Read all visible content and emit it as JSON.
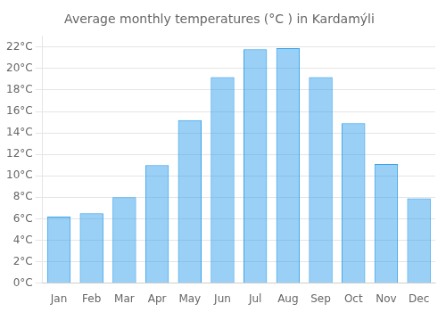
{
  "chart_data": {
    "type": "bar",
    "title": "Average monthly temperatures (°C ) in Kardamýli",
    "categories": [
      "Jan",
      "Feb",
      "Mar",
      "Apr",
      "May",
      "Jun",
      "Jul",
      "Aug",
      "Sep",
      "Oct",
      "Nov",
      "Dec"
    ],
    "values": [
      6.2,
      6.5,
      8.0,
      11.0,
      15.2,
      19.2,
      21.8,
      21.9,
      19.2,
      14.9,
      11.1,
      7.9
    ],
    "ylim": [
      0,
      23
    ],
    "yticks": [
      {
        "value": 0,
        "label": "0°C"
      },
      {
        "value": 2,
        "label": "2°C"
      },
      {
        "value": 4,
        "label": "4°C"
      },
      {
        "value": 6,
        "label": "6°C"
      },
      {
        "value": 8,
        "label": "8°C"
      },
      {
        "value": 10,
        "label": "10°C"
      },
      {
        "value": 12,
        "label": "12°C"
      },
      {
        "value": 14,
        "label": "14°C"
      },
      {
        "value": 16,
        "label": "16°C"
      },
      {
        "value": 18,
        "label": "18°C"
      },
      {
        "value": 20,
        "label": "20°C"
      },
      {
        "value": 22,
        "label": "22°C"
      }
    ],
    "grid": true
  }
}
